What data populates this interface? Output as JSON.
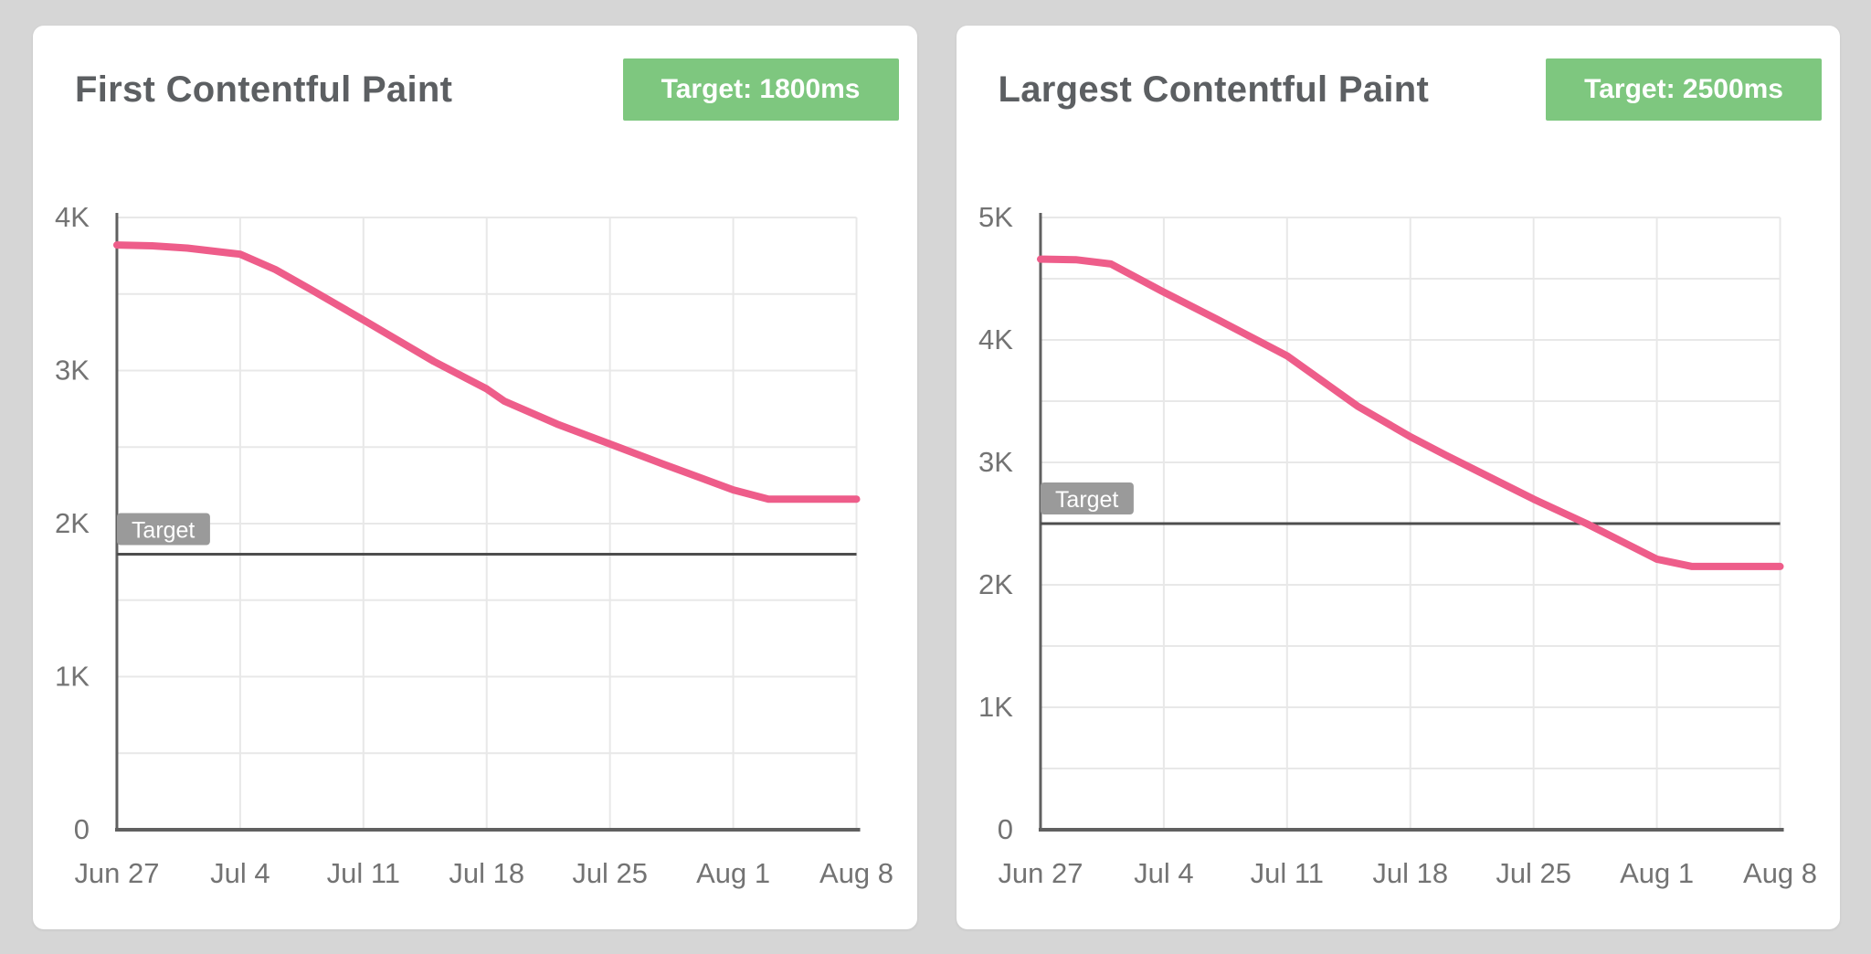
{
  "theme": {
    "page_bg": "#d6d6d6",
    "card_bg": "#ffffff",
    "title_color": "#5c5f62",
    "badge_bg": "#7ec77f",
    "badge_text": "#ffffff",
    "axis_color": "#606060",
    "grid_color": "#e8e8e8",
    "tick_color": "#737373",
    "target_line_color": "#4d4d4d",
    "target_chip_bg": "#9a9a9a",
    "target_chip_text": "#ffffff",
    "line_pink": "#ee5d8a"
  },
  "chart_data": [
    {
      "type": "line",
      "title": "First Contentful Paint",
      "target_badge": "Target: 1800ms",
      "target_line_label": "Target",
      "target_value_ms": 1800,
      "x_tick_labels": [
        "Jun 27",
        "Jul 4",
        "Jul 11",
        "Jul 18",
        "Jul 25",
        "Aug 1",
        "Aug 8"
      ],
      "x_tick_days": [
        0,
        7,
        14,
        21,
        28,
        35,
        42
      ],
      "y_tick_labels": [
        "0",
        "1K",
        "2K",
        "3K",
        "4K"
      ],
      "y_tick_values": [
        0,
        1000,
        2000,
        3000,
        4000
      ],
      "ylim": [
        0,
        4000
      ],
      "xlim_days": [
        0,
        42
      ],
      "grid": "on",
      "grid_step_y_ms": 500,
      "weekly_values_ms": [
        3820,
        3760,
        3330,
        2880,
        2520,
        2220,
        2160
      ],
      "series": [
        {
          "name": "First Contentful Paint (ms)",
          "points_day_ms": [
            [
              0,
              3820
            ],
            [
              2,
              3815
            ],
            [
              4,
              3800
            ],
            [
              7,
              3760
            ],
            [
              9,
              3660
            ],
            [
              11,
              3530
            ],
            [
              14,
              3330
            ],
            [
              18,
              3060
            ],
            [
              21,
              2880
            ],
            [
              22,
              2800
            ],
            [
              25,
              2650
            ],
            [
              28,
              2520
            ],
            [
              31,
              2390
            ],
            [
              35,
              2220
            ],
            [
              37,
              2160
            ],
            [
              42,
              2160
            ]
          ]
        }
      ]
    },
    {
      "type": "line",
      "title": "Largest Contentful Paint",
      "target_badge": "Target: 2500ms",
      "target_line_label": "Target",
      "target_value_ms": 2500,
      "x_tick_labels": [
        "Jun 27",
        "Jul 4",
        "Jul 11",
        "Jul 18",
        "Jul 25",
        "Aug 1",
        "Aug 8"
      ],
      "x_tick_days": [
        0,
        7,
        14,
        21,
        28,
        35,
        42
      ],
      "y_tick_labels": [
        "0",
        "1K",
        "2K",
        "3K",
        "4K",
        "5K"
      ],
      "y_tick_values": [
        0,
        1000,
        2000,
        3000,
        4000,
        5000
      ],
      "ylim": [
        0,
        5000
      ],
      "xlim_days": [
        0,
        42
      ],
      "grid": "on",
      "grid_step_y_ms": 500,
      "weekly_values_ms": [
        4660,
        4390,
        3870,
        3210,
        2700,
        2210,
        2150
      ],
      "series": [
        {
          "name": "Largest Contentful Paint (ms)",
          "points_day_ms": [
            [
              0,
              4660
            ],
            [
              2,
              4655
            ],
            [
              4,
              4620
            ],
            [
              7,
              4390
            ],
            [
              10,
              4170
            ],
            [
              14,
              3870
            ],
            [
              18,
              3460
            ],
            [
              21,
              3210
            ],
            [
              23,
              3060
            ],
            [
              28,
              2700
            ],
            [
              31,
              2500
            ],
            [
              35,
              2210
            ],
            [
              37,
              2150
            ],
            [
              42,
              2150
            ]
          ]
        }
      ]
    }
  ]
}
